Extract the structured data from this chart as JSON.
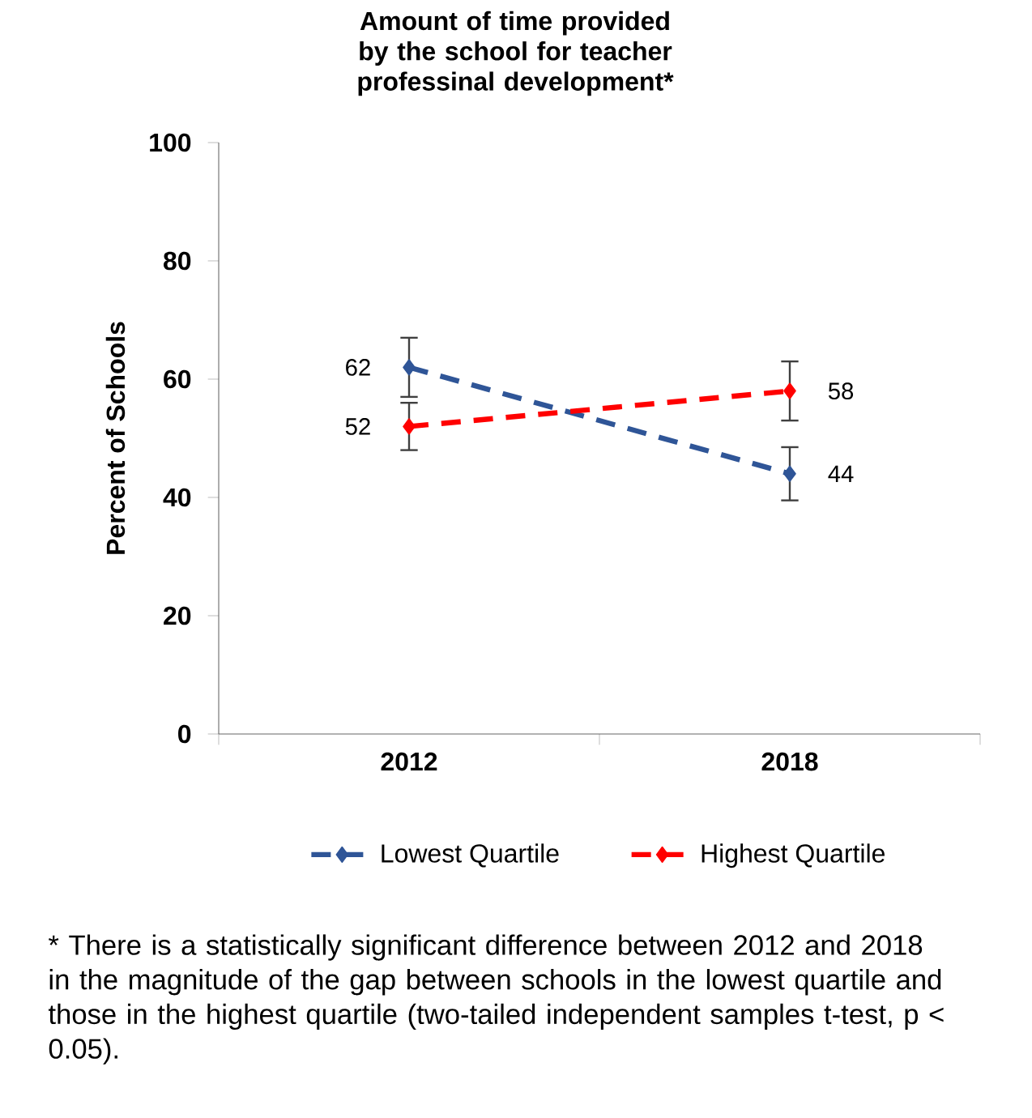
{
  "chart_data": {
    "type": "line",
    "title": "Amount of time provided by the school for teacher professinal development*",
    "ylabel": "Percent of Schools",
    "categories": [
      "2012",
      "2018"
    ],
    "ylim": [
      0,
      100
    ],
    "yticks": [
      0,
      20,
      40,
      60,
      80,
      100
    ],
    "marker": "diamond",
    "line_style": "dashed",
    "data_labels": true,
    "legend": "bottom",
    "series": [
      {
        "name": "Lowest Quartile",
        "color": "#2f5597",
        "values": [
          62,
          44
        ],
        "errors": [
          5,
          4.5
        ]
      },
      {
        "name": "Highest Quartile",
        "color": "#ff0000",
        "values": [
          52,
          58
        ],
        "errors": [
          4,
          5
        ]
      }
    ],
    "annotations": [
      "* There is a statistically significant difference between 2012 and 2018 in the magnitude of the gap between schools in the lowest quartile and those in the highest quartile (two-tailed independent samples t-test, p < 0.05)."
    ]
  }
}
